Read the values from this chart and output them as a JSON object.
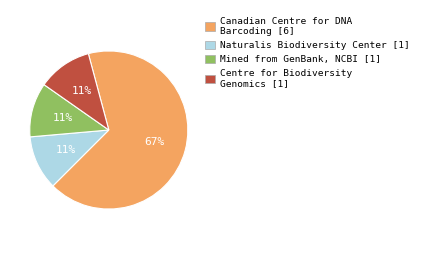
{
  "labels": [
    "Canadian Centre for DNA\nBarcoding [6]",
    "Naturalis Biodiversity Center [1]",
    "Mined from GenBank, NCBI [1]",
    "Centre for Biodiversity\nGenomics [1]"
  ],
  "values": [
    6,
    1,
    1,
    1
  ],
  "colors": [
    "#F4A460",
    "#ADD8E6",
    "#90C060",
    "#C05040"
  ],
  "startangle": 105,
  "background_color": "#ffffff",
  "text_color": "#000000",
  "pct_fontsize": 8,
  "legend_fontsize": 6.8
}
